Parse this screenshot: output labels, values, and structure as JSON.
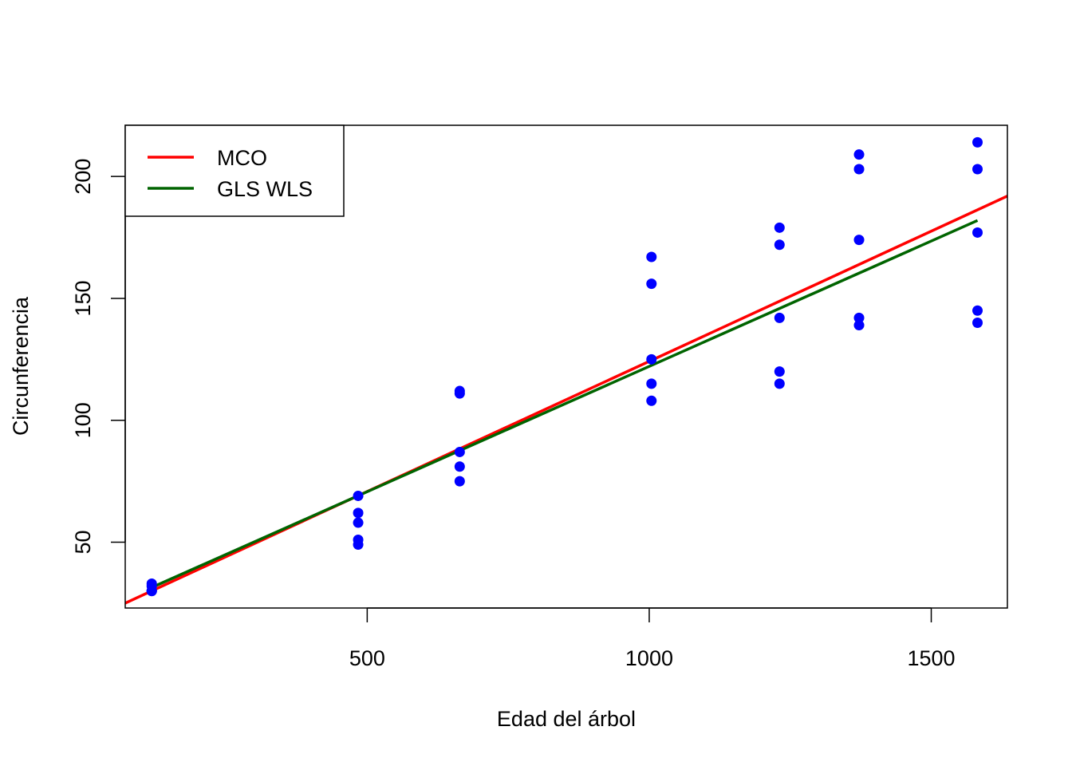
{
  "chart_data": {
    "type": "scatter",
    "title": "",
    "xlabel": "Edad del árbol",
    "ylabel": "Circunferencia",
    "xlim": [
      71,
      1635
    ],
    "ylim": [
      23,
      221
    ],
    "x_ticks": [
      500,
      1000,
      1500
    ],
    "y_ticks": [
      50,
      100,
      150,
      200
    ],
    "grid": false,
    "legend_position": "top-left",
    "point_color": "#0000ff",
    "points": [
      {
        "x": 118,
        "y": 30
      },
      {
        "x": 118,
        "y": 33
      },
      {
        "x": 118,
        "y": 30
      },
      {
        "x": 118,
        "y": 32
      },
      {
        "x": 118,
        "y": 30
      },
      {
        "x": 484,
        "y": 58
      },
      {
        "x": 484,
        "y": 69
      },
      {
        "x": 484,
        "y": 51
      },
      {
        "x": 484,
        "y": 62
      },
      {
        "x": 484,
        "y": 49
      },
      {
        "x": 664,
        "y": 87
      },
      {
        "x": 664,
        "y": 111
      },
      {
        "x": 664,
        "y": 75
      },
      {
        "x": 664,
        "y": 112
      },
      {
        "x": 664,
        "y": 81
      },
      {
        "x": 1004,
        "y": 115
      },
      {
        "x": 1004,
        "y": 156
      },
      {
        "x": 1004,
        "y": 108
      },
      {
        "x": 1004,
        "y": 167
      },
      {
        "x": 1004,
        "y": 125
      },
      {
        "x": 1231,
        "y": 120
      },
      {
        "x": 1231,
        "y": 172
      },
      {
        "x": 1231,
        "y": 115
      },
      {
        "x": 1231,
        "y": 179
      },
      {
        "x": 1231,
        "y": 142
      },
      {
        "x": 1372,
        "y": 142
      },
      {
        "x": 1372,
        "y": 203
      },
      {
        "x": 1372,
        "y": 139
      },
      {
        "x": 1372,
        "y": 209
      },
      {
        "x": 1372,
        "y": 174
      },
      {
        "x": 1582,
        "y": 145
      },
      {
        "x": 1582,
        "y": 203
      },
      {
        "x": 1582,
        "y": 140
      },
      {
        "x": 1582,
        "y": 214
      },
      {
        "x": 1582,
        "y": 177
      }
    ],
    "series": [
      {
        "name": "MCO",
        "kind": "line",
        "color": "#ff0000",
        "intercept": 17.4,
        "slope": 0.10677,
        "x_range": [
          71,
          1635
        ]
      },
      {
        "name": "GLS WLS",
        "kind": "line",
        "color": "#006400",
        "intercept": 19.3,
        "slope": 0.10281,
        "x_range": [
          118,
          1582
        ]
      }
    ]
  }
}
